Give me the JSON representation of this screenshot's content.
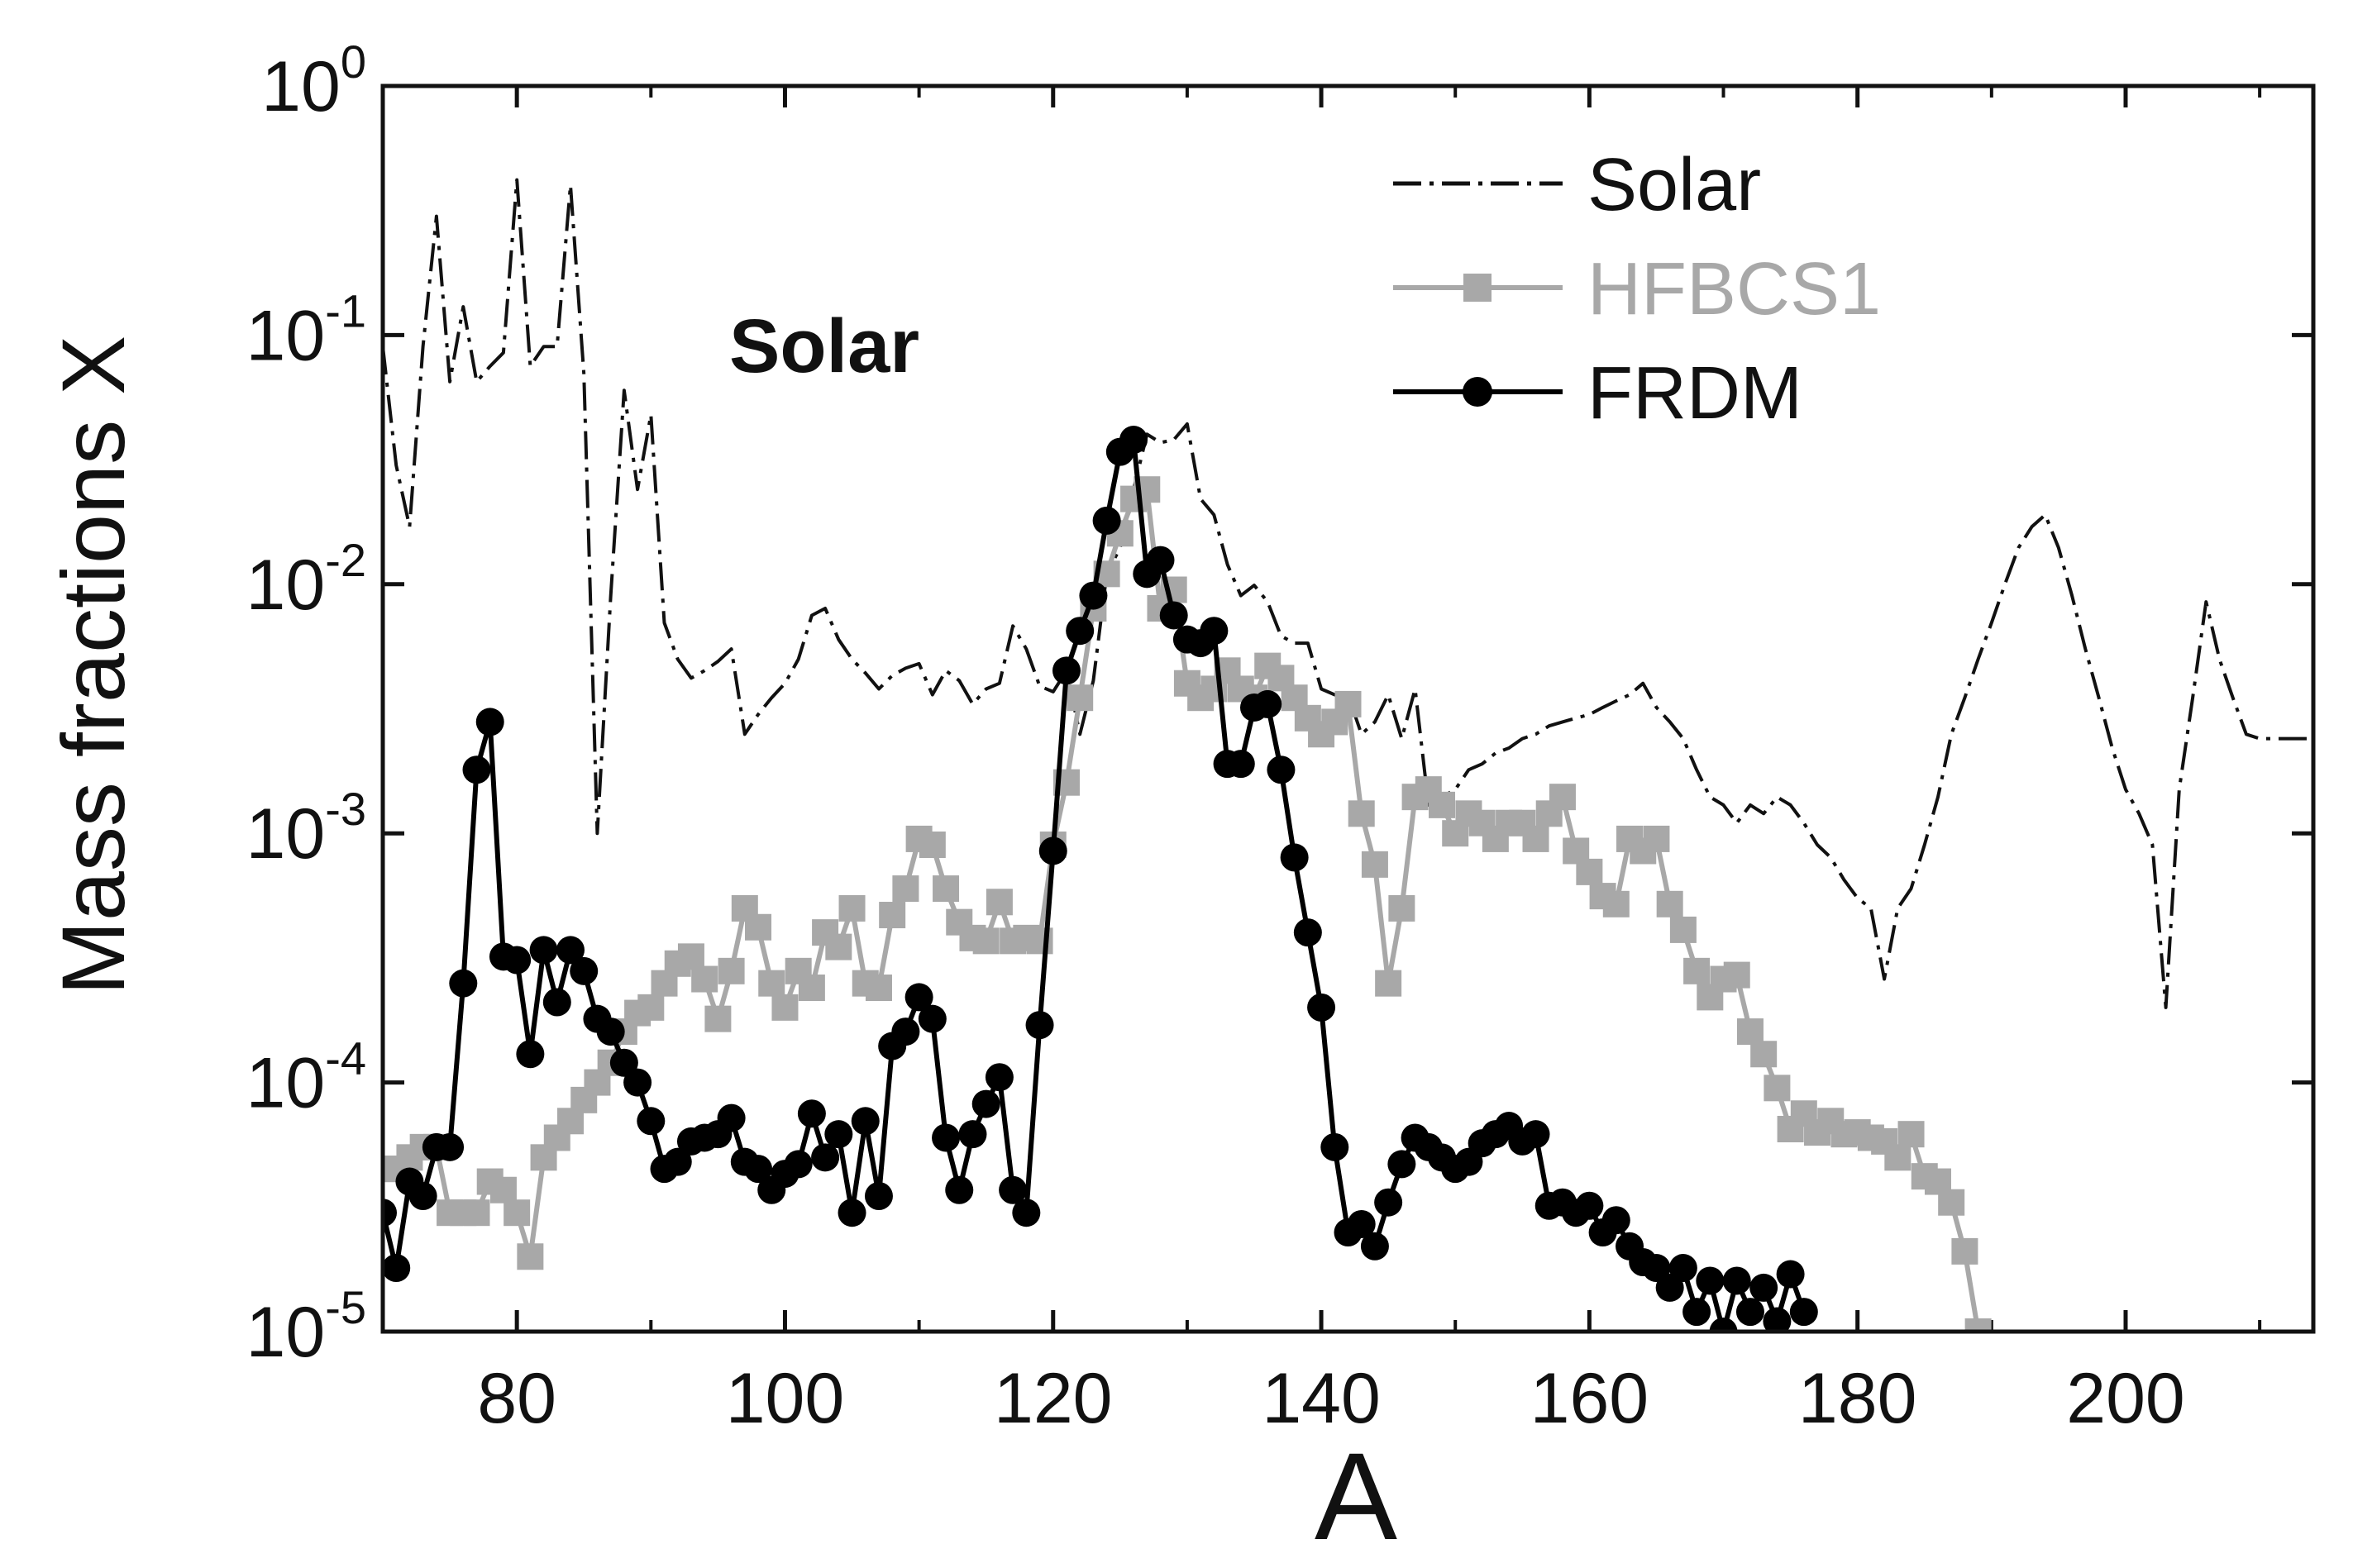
{
  "chart_data": {
    "type": "line",
    "title": "",
    "annotation": "Solar",
    "xlabel": "A",
    "ylabel": "Mass fractions X",
    "xlim": [
      70,
      214
    ],
    "ylim_log10": [
      -5,
      0
    ],
    "yscale": "log",
    "x_ticks": [
      80,
      100,
      120,
      140,
      160,
      180,
      200
    ],
    "x_tick_labels": [
      "80",
      "100",
      "120",
      "140",
      "160",
      "180",
      "200"
    ],
    "y_tick_labels": [
      {
        "base": "10",
        "exp": "0"
      },
      {
        "base": "10",
        "exp": "-1"
      },
      {
        "base": "10",
        "exp": "-2"
      },
      {
        "base": "10",
        "exp": "-3"
      },
      {
        "base": "10",
        "exp": "-4"
      },
      {
        "base": "10",
        "exp": "-5"
      }
    ],
    "legend_position": "top-right",
    "series": [
      {
        "name": "Solar",
        "style": "dash-dot",
        "color": "#111111",
        "x": [
          70,
          71,
          72,
          73,
          74,
          75,
          76,
          77,
          78,
          79,
          80,
          81,
          82,
          83,
          84,
          85,
          86,
          87,
          88,
          89,
          90,
          91,
          92,
          93,
          94,
          95,
          96,
          97,
          98,
          99,
          100,
          101,
          102,
          103,
          104,
          105,
          106,
          107,
          108,
          109,
          110,
          111,
          112,
          113,
          114,
          115,
          116,
          117,
          118,
          119,
          120,
          121,
          122,
          123,
          124,
          125,
          126,
          127,
          128,
          129,
          130,
          131,
          132,
          133,
          134,
          135,
          136,
          137,
          138,
          139,
          140,
          141,
          142,
          143,
          144,
          145,
          146,
          147,
          148,
          149,
          150,
          151,
          152,
          153,
          154,
          155,
          156,
          157,
          158,
          159,
          160,
          161,
          162,
          163,
          164,
          165,
          166,
          167,
          168,
          169,
          170,
          171,
          172,
          173,
          174,
          175,
          176,
          177,
          178,
          179,
          180,
          181,
          182,
          183,
          184,
          185,
          186,
          187,
          188,
          189,
          190,
          191,
          192,
          193,
          194,
          195,
          196,
          197,
          198,
          199,
          200,
          201,
          202,
          203,
          204,
          205,
          206,
          207,
          208,
          209,
          210,
          211,
          212,
          213,
          214
        ],
        "y": [
          0.09,
          0.03,
          0.017,
          0.09,
          0.3,
          0.065,
          0.13,
          0.065,
          0.075,
          0.085,
          0.42,
          0.075,
          0.09,
          0.09,
          0.4,
          0.07,
          0.001,
          0.009,
          0.06,
          0.024,
          0.048,
          0.007,
          0.005,
          0.0042,
          0.0045,
          0.0049,
          0.0055,
          0.0025,
          0.003,
          0.0035,
          0.004,
          0.005,
          0.0075,
          0.008,
          0.006,
          0.005,
          0.0044,
          0.0038,
          0.0043,
          0.0046,
          0.0048,
          0.0036,
          0.0045,
          0.0041,
          0.0033,
          0.0038,
          0.004,
          0.0068,
          0.0055,
          0.0039,
          0.0037,
          0.0045,
          0.0025,
          0.0041,
          0.011,
          0.014,
          0.024,
          0.04,
          0.037,
          0.038,
          0.044,
          0.022,
          0.019,
          0.012,
          0.009,
          0.0099,
          0.0085,
          0.0062,
          0.0058,
          0.0058,
          0.0038,
          0.0036,
          0.0036,
          0.0025,
          0.0028,
          0.0036,
          0.0024,
          0.0038,
          0.0013,
          0.0014,
          0.0015,
          0.0018,
          0.0019,
          0.0021,
          0.0022,
          0.0024,
          0.0025,
          0.0027,
          0.0028,
          0.0029,
          0.003,
          0.0032,
          0.0034,
          0.0036,
          0.004,
          0.0032,
          0.0028,
          0.0024,
          0.0018,
          0.0014,
          0.0013,
          0.0011,
          0.0013,
          0.0012,
          0.0014,
          0.0013,
          0.0011,
          0.0009,
          0.0008,
          0.00065,
          0.00055,
          0.0005,
          0.00026,
          0.0005,
          0.0006,
          0.0009,
          0.0014,
          0.0025,
          0.0035,
          0.005,
          0.007,
          0.01,
          0.014,
          0.017,
          0.019,
          0.014,
          0.009,
          0.0055,
          0.0035,
          0.0022,
          0.0015,
          0.0012,
          0.0009,
          0.0002,
          0.0015,
          0.0035,
          0.0085,
          0.005,
          0.0035,
          0.0025,
          0.0024,
          0.0024,
          0.0024,
          0.0024,
          0.0024
        ]
      },
      {
        "name": "HFBCS1",
        "style": "solid-square",
        "color": "#a8a8a8",
        "x": [
          70,
          71,
          72,
          73,
          74,
          75,
          76,
          77,
          78,
          79,
          80,
          81,
          82,
          83,
          84,
          85,
          86,
          87,
          88,
          89,
          90,
          91,
          92,
          93,
          94,
          95,
          96,
          97,
          98,
          99,
          100,
          101,
          102,
          103,
          104,
          105,
          106,
          107,
          108,
          109,
          110,
          111,
          112,
          113,
          114,
          115,
          116,
          117,
          118,
          119,
          120,
          121,
          122,
          123,
          124,
          125,
          126,
          127,
          128,
          129,
          130,
          131,
          132,
          133,
          134,
          135,
          136,
          137,
          138,
          139,
          140,
          141,
          142,
          143,
          144,
          145,
          146,
          147,
          148,
          149,
          150,
          151,
          152,
          153,
          154,
          155,
          156,
          157,
          158,
          159,
          160,
          161,
          162,
          163,
          164,
          165,
          166,
          167,
          168,
          169,
          170,
          171,
          172,
          173,
          174,
          175,
          176,
          177,
          178,
          179,
          180,
          181,
          182,
          183,
          184,
          185,
          186,
          187,
          188,
          189
        ],
        "y": [
          4.5e-05,
          4.5e-05,
          5e-05,
          5.5e-05,
          5.5e-05,
          3e-05,
          3e-05,
          3e-05,
          4e-05,
          3.7e-05,
          3e-05,
          2e-05,
          5e-05,
          6e-05,
          7e-05,
          8.5e-05,
          0.0001,
          0.00012,
          0.00016,
          0.00019,
          0.0002,
          0.00025,
          0.0003,
          0.00032,
          0.00026,
          0.00018,
          0.00028,
          0.0005,
          0.00042,
          0.00025,
          0.0002,
          0.00028,
          0.00024,
          0.0004,
          0.00035,
          0.0005,
          0.00025,
          0.00024,
          0.00047,
          0.0006,
          0.00095,
          0.0009,
          0.0006,
          0.00044,
          0.00038,
          0.00037,
          0.00053,
          0.00037,
          0.00038,
          0.00037,
          0.0009,
          0.0016,
          0.0035,
          0.008,
          0.011,
          0.016,
          0.022,
          0.024,
          0.008,
          0.0095,
          0.004,
          0.0035,
          0.0038,
          0.0045,
          0.0038,
          0.0035,
          0.0047,
          0.0042,
          0.0035,
          0.0029,
          0.0025,
          0.0028,
          0.0033,
          0.0012,
          0.00075,
          0.00025,
          0.0005,
          0.0014,
          0.0015,
          0.0013,
          0.001,
          0.0012,
          0.0011,
          0.00095,
          0.0011,
          0.0011,
          0.00095,
          0.0012,
          0.0014,
          0.00085,
          0.0007,
          0.00056,
          0.00052,
          0.00095,
          0.00085,
          0.00095,
          0.00052,
          0.00041,
          0.00028,
          0.00022,
          0.00026,
          0.00027,
          0.00016,
          0.00013,
          9.5e-05,
          6.5e-05,
          7.5e-05,
          6.3e-05,
          7e-05,
          6.2e-05,
          6.3e-05,
          6e-05,
          5.8e-05,
          5e-05,
          6.2e-05,
          4.2e-05,
          4e-05,
          3.3e-05,
          2.1e-05,
          1e-05
        ]
      },
      {
        "name": "FRDM",
        "style": "solid-circle",
        "color": "#000000",
        "x": [
          70,
          71,
          72,
          73,
          74,
          75,
          76,
          77,
          78,
          79,
          80,
          81,
          82,
          83,
          84,
          85,
          86,
          87,
          88,
          89,
          90,
          91,
          92,
          93,
          94,
          95,
          96,
          97,
          98,
          99,
          100,
          101,
          102,
          103,
          104,
          105,
          106,
          107,
          108,
          109,
          110,
          111,
          112,
          113,
          114,
          115,
          116,
          117,
          118,
          119,
          120,
          121,
          122,
          123,
          124,
          125,
          126,
          127,
          128,
          129,
          130,
          131,
          132,
          133,
          134,
          135,
          136,
          137,
          138,
          139,
          140,
          141,
          142,
          143,
          144,
          145,
          146,
          147,
          148,
          149,
          150,
          151,
          152,
          153,
          154,
          155,
          156,
          157,
          158,
          159,
          160,
          161,
          162,
          163,
          164,
          165,
          166,
          167,
          168,
          169,
          170,
          171,
          172,
          173,
          174,
          175,
          176
        ],
        "y": [
          3e-05,
          1.8e-05,
          4e-05,
          3.5e-05,
          5.5e-05,
          5.5e-05,
          0.00025,
          0.0018,
          0.0028,
          0.00032,
          0.00031,
          0.00013,
          0.00034,
          0.00021,
          0.00034,
          0.00028,
          0.00018,
          0.00016,
          0.00012,
          0.0001,
          7e-05,
          4.5e-05,
          4.8e-05,
          5.8e-05,
          6e-05,
          6.2e-05,
          7.2e-05,
          4.8e-05,
          4.5e-05,
          3.7e-05,
          4.3e-05,
          4.7e-05,
          7.5e-05,
          5e-05,
          6.2e-05,
          3e-05,
          7e-05,
          3.5e-05,
          0.00014,
          0.00016,
          0.00022,
          0.00018,
          6e-05,
          3.7e-05,
          6.2e-05,
          8.2e-05,
          0.000105,
          3.7e-05,
          3e-05,
          0.00017,
          0.00085,
          0.0045,
          0.0065,
          0.009,
          0.018,
          0.034,
          0.038,
          0.011,
          0.0125,
          0.0075,
          0.006,
          0.0058,
          0.0065,
          0.0019,
          0.0019,
          0.0032,
          0.0033,
          0.0018,
          0.0008,
          0.0004,
          0.0002,
          5.5e-05,
          2.5e-05,
          2.7e-05,
          2.2e-05,
          3.3e-05,
          4.7e-05,
          6e-05,
          5.5e-05,
          5e-05,
          4.5e-05,
          4.8e-05,
          5.7e-05,
          6.2e-05,
          6.7e-05,
          5.8e-05,
          6.2e-05,
          3.2e-05,
          3.3e-05,
          3e-05,
          3.2e-05,
          2.5e-05,
          2.8e-05,
          2.2e-05,
          1.9e-05,
          1.8e-05,
          1.5e-05,
          1.8e-05,
          1.2e-05,
          1.6e-05,
          1e-05,
          1.6e-05,
          1.2e-05,
          1.5e-05,
          1.1e-05,
          1.7e-05,
          1.2e-05
        ]
      }
    ]
  }
}
